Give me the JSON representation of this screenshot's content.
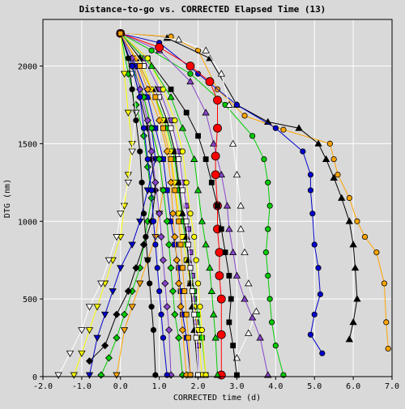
{
  "chart_data": {
    "type": "line",
    "title": "Distance-to-go vs. CORRECTED Elapsed Time (13)",
    "xlabel": "CORRECTED time (d)",
    "ylabel": "DTG (nm)",
    "xlim": [
      -2.0,
      7.0
    ],
    "ylim": [
      0,
      2300
    ],
    "xticks": [
      "-2.0",
      "-1.0",
      "0.0",
      "1.0",
      "2.0",
      "3.0",
      "4.0",
      "5.0",
      "6.0",
      "7.0"
    ],
    "yticks": [
      "0",
      "500",
      "1000",
      "1500",
      "2000"
    ],
    "xtick_values": [
      -2,
      -1,
      0,
      1,
      2,
      3,
      4,
      5,
      6,
      7
    ],
    "ytick_values": [
      0,
      500,
      1000,
      1500,
      2000
    ],
    "grid": true,
    "legend": "none",
    "colors": {
      "background": "#d9d9d9",
      "plot_area": "#d9d9d9",
      "grid": "#ffffff"
    },
    "series": [
      {
        "color": "#ffa500",
        "marker": "circle",
        "x": [
          0.0,
          1.3,
          2.0,
          2.5,
          3.2,
          4.2,
          5.4,
          5.5,
          5.6,
          5.9,
          6.1,
          6.3,
          6.6,
          6.8,
          6.85,
          6.9
        ],
        "y": [
          2210,
          2190,
          2100,
          1850,
          1680,
          1590,
          1500,
          1400,
          1300,
          1150,
          1000,
          900,
          800,
          600,
          350,
          180
        ]
      },
      {
        "color": "#000000",
        "marker": "triangle",
        "x": [
          0.0,
          1.2,
          2.3,
          3.0,
          3.8,
          4.6,
          5.1,
          5.3,
          5.5,
          5.7,
          5.9,
          6.0,
          6.05,
          6.1,
          6.0,
          5.9
        ],
        "y": [
          2210,
          2180,
          2050,
          1750,
          1640,
          1600,
          1500,
          1400,
          1280,
          1150,
          1000,
          850,
          700,
          500,
          350,
          240
        ]
      },
      {
        "color": "#0000cc",
        "marker": "circle",
        "x": [
          0.0,
          1.0,
          2.0,
          3.0,
          4.0,
          4.7,
          4.9,
          4.9,
          4.95,
          5.0,
          5.1,
          5.15,
          5.0,
          4.9,
          5.2
        ],
        "y": [
          2210,
          2150,
          1950,
          1750,
          1600,
          1450,
          1300,
          1200,
          1050,
          850,
          700,
          530,
          400,
          270,
          150
        ]
      },
      {
        "color": "#00cc00",
        "marker": "circle",
        "x": [
          0.0,
          0.8,
          1.8,
          2.7,
          3.4,
          3.7,
          3.8,
          3.85,
          3.8,
          3.75,
          3.8,
          3.85,
          3.9,
          4.0,
          4.2
        ],
        "y": [
          2210,
          2100,
          1950,
          1750,
          1550,
          1400,
          1250,
          1100,
          950,
          800,
          650,
          500,
          350,
          200,
          10
        ]
      },
      {
        "color": "#ffffff",
        "marker": "triangle",
        "x": [
          0.0,
          1.5,
          2.2,
          2.6,
          2.8,
          2.9,
          3.0,
          3.1,
          3.1,
          3.2,
          3.3,
          3.5,
          3.3,
          3.0
        ],
        "y": [
          2210,
          2170,
          2100,
          1950,
          1750,
          1500,
          1300,
          1100,
          950,
          800,
          600,
          420,
          280,
          120
        ]
      },
      {
        "color": "#8844cc",
        "marker": "triangle",
        "x": [
          0.0,
          1.0,
          1.8,
          2.2,
          2.4,
          2.6,
          2.75,
          2.8,
          2.9,
          3.0,
          3.2,
          3.4,
          3.6,
          3.8
        ],
        "y": [
          2210,
          2100,
          1900,
          1700,
          1500,
          1300,
          1100,
          950,
          800,
          650,
          500,
          380,
          250,
          10
        ]
      },
      {
        "color": "#ff0000",
        "marker": "bigcircle",
        "x": [
          0.0,
          1.0,
          1.8,
          2.3,
          2.5,
          2.5,
          2.45,
          2.45,
          2.5,
          2.5,
          2.55,
          2.55,
          2.6,
          2.6,
          2.6
        ],
        "y": [
          2210,
          2120,
          2000,
          1900,
          1780,
          1600,
          1420,
          1300,
          1100,
          950,
          800,
          650,
          500,
          270,
          10
        ]
      },
      {
        "color": "#000000",
        "marker": "square",
        "x": [
          0.0,
          0.7,
          1.3,
          1.7,
          2.0,
          2.2,
          2.35,
          2.5,
          2.6,
          2.7,
          2.8,
          2.85,
          2.8,
          2.9,
          3.0
        ],
        "y": [
          2210,
          2050,
          1850,
          1700,
          1550,
          1400,
          1250,
          1100,
          950,
          800,
          650,
          500,
          350,
          200,
          10
        ]
      },
      {
        "color": "#00cc00",
        "marker": "diamond",
        "x": [
          0.0,
          0.2,
          0.4,
          0.6,
          0.7,
          0.8,
          0.7,
          0.6,
          0.5,
          0.3,
          0.1,
          -0.1,
          -0.3,
          -0.5
        ],
        "y": [
          2210,
          1950,
          1750,
          1550,
          1350,
          1150,
          1000,
          850,
          700,
          550,
          400,
          250,
          120,
          10
        ]
      },
      {
        "color": "#ffff00",
        "marker": "triangle_down",
        "x": [
          0.0,
          0.1,
          0.2,
          0.3,
          0.2,
          0.1,
          0.0,
          -0.2,
          -0.4,
          -0.6,
          -0.8,
          -1.0,
          -1.2
        ],
        "y": [
          2210,
          1950,
          1700,
          1500,
          1300,
          1100,
          900,
          750,
          600,
          450,
          300,
          150,
          10
        ]
      },
      {
        "color": "#ffffff",
        "marker": "triangle_down",
        "x": [
          0.0,
          0.3,
          0.4,
          0.3,
          0.2,
          0.0,
          -0.1,
          -0.3,
          -0.5,
          -0.8,
          -1.0,
          -1.3,
          -1.6
        ],
        "y": [
          2210,
          1950,
          1700,
          1450,
          1250,
          1050,
          900,
          750,
          600,
          450,
          300,
          150,
          10
        ]
      },
      {
        "color": "#0000cc",
        "marker": "triangle_down",
        "x": [
          0.0,
          0.3,
          0.6,
          0.8,
          0.9,
          0.7,
          0.5,
          0.3,
          0.0,
          -0.2,
          -0.4,
          -0.6,
          -0.8
        ],
        "y": [
          2210,
          2000,
          1800,
          1600,
          1400,
          1200,
          1000,
          850,
          700,
          550,
          400,
          250,
          10
        ]
      },
      {
        "color": "#000000",
        "marker": "diamond",
        "x": [
          0.0,
          0.3,
          0.5,
          0.7,
          0.8,
          0.9,
          0.8,
          0.6,
          0.4,
          0.2,
          -0.1,
          -0.4,
          -0.8
        ],
        "y": [
          2210,
          2000,
          1800,
          1600,
          1400,
          1200,
          1000,
          850,
          700,
          550,
          400,
          200,
          100
        ]
      },
      {
        "color": "#ffa500",
        "marker": "triangle_down",
        "x": [
          0.0,
          0.4,
          0.6,
          0.8,
          1.0,
          1.1,
          1.0,
          0.9,
          0.7,
          0.5,
          0.3,
          0.1,
          -0.1
        ],
        "y": [
          2210,
          2000,
          1800,
          1600,
          1400,
          1200,
          1050,
          900,
          750,
          600,
          450,
          300,
          10
        ]
      },
      {
        "color": "#8844cc",
        "marker": "square",
        "x": [
          0.0,
          0.6,
          1.0,
          1.3,
          1.5,
          1.6,
          1.7,
          1.75,
          1.8,
          1.85,
          1.9,
          1.95,
          2.0,
          2.0
        ],
        "y": [
          2210,
          2050,
          1850,
          1650,
          1450,
          1250,
          1100,
          950,
          800,
          650,
          500,
          350,
          200,
          10
        ]
      },
      {
        "color": "#00cc00",
        "marker": "square",
        "x": [
          0.0,
          0.5,
          0.9,
          1.2,
          1.4,
          1.5,
          1.6,
          1.7,
          1.8,
          1.9,
          2.0,
          2.1,
          2.2
        ],
        "y": [
          2210,
          2000,
          1800,
          1600,
          1400,
          1200,
          1000,
          850,
          700,
          550,
          400,
          250,
          10
        ]
      },
      {
        "color": "#ffff00",
        "marker": "square",
        "x": [
          0.0,
          0.5,
          0.8,
          1.1,
          1.3,
          1.4,
          1.5,
          1.6,
          1.7,
          1.8,
          1.9,
          2.0,
          2.1
        ],
        "y": [
          2210,
          2050,
          1850,
          1650,
          1450,
          1250,
          1050,
          900,
          750,
          600,
          450,
          300,
          10
        ]
      },
      {
        "color": "#0000cc",
        "marker": "square",
        "x": [
          0.0,
          0.4,
          0.7,
          0.9,
          1.1,
          1.2,
          1.3,
          1.4,
          1.5,
          1.55,
          1.6,
          1.7,
          1.8
        ],
        "y": [
          2210,
          2000,
          1800,
          1600,
          1400,
          1200,
          1000,
          850,
          700,
          550,
          400,
          250,
          10
        ]
      },
      {
        "color": "#000000",
        "marker": "triangle",
        "x": [
          0.0,
          0.5,
          0.9,
          1.2,
          1.4,
          1.5,
          1.6,
          1.7,
          1.75,
          1.8,
          1.85,
          1.9,
          2.0
        ],
        "y": [
          2210,
          2050,
          1850,
          1650,
          1450,
          1250,
          1050,
          900,
          750,
          600,
          450,
          300,
          10
        ]
      },
      {
        "color": "#00cc00",
        "marker": "diamond",
        "x": [
          0.0,
          0.3,
          0.6,
          0.8,
          1.0,
          1.1,
          1.2,
          1.25,
          1.3,
          1.35,
          1.4,
          1.5,
          1.6
        ],
        "y": [
          2210,
          2000,
          1800,
          1600,
          1400,
          1200,
          1000,
          850,
          700,
          550,
          400,
          250,
          10
        ]
      },
      {
        "color": "#ffa500",
        "marker": "diamond",
        "x": [
          0.0,
          0.4,
          0.7,
          1.0,
          1.2,
          1.3,
          1.35,
          1.4,
          1.45,
          1.5,
          1.55,
          1.6,
          1.7
        ],
        "y": [
          2210,
          2050,
          1850,
          1650,
          1450,
          1250,
          1050,
          900,
          750,
          600,
          450,
          300,
          10
        ]
      },
      {
        "color": "#ffffff",
        "marker": "square",
        "x": [
          0.0,
          0.6,
          1.0,
          1.3,
          1.5,
          1.6,
          1.7,
          1.75,
          1.8,
          1.85,
          1.9,
          1.95,
          2.0
        ],
        "y": [
          2210,
          2000,
          1800,
          1600,
          1400,
          1200,
          1000,
          850,
          700,
          550,
          400,
          250,
          10
        ]
      },
      {
        "color": "#8844cc",
        "marker": "diamond",
        "x": [
          0.0,
          0.3,
          0.5,
          0.7,
          0.8,
          0.9,
          1.0,
          1.05,
          1.1,
          1.15,
          1.2,
          1.25,
          1.3
        ],
        "y": [
          2210,
          2050,
          1850,
          1650,
          1450,
          1250,
          1050,
          900,
          750,
          600,
          450,
          300,
          10
        ]
      },
      {
        "color": "#0000cc",
        "marker": "circle",
        "x": [
          0.0,
          0.3,
          0.5,
          0.6,
          0.7,
          0.8,
          0.85,
          0.9,
          0.95,
          1.0,
          1.05,
          1.1,
          1.2
        ],
        "y": [
          2210,
          2000,
          1800,
          1600,
          1400,
          1200,
          1000,
          850,
          700,
          550,
          400,
          250,
          10
        ]
      },
      {
        "color": "#ffff00",
        "marker": "circle",
        "x": [
          0.0,
          0.7,
          1.1,
          1.4,
          1.6,
          1.7,
          1.8,
          1.9,
          1.95,
          2.0,
          2.05,
          2.1,
          2.2
        ],
        "y": [
          2210,
          2050,
          1850,
          1650,
          1450,
          1250,
          1050,
          900,
          750,
          600,
          450,
          300,
          10
        ]
      },
      {
        "color": "#00cc00",
        "marker": "triangle",
        "x": [
          0.0,
          0.8,
          1.3,
          1.6,
          1.9,
          2.0,
          2.1,
          2.2,
          2.3,
          2.35,
          2.4,
          2.45,
          2.5
        ],
        "y": [
          2210,
          2000,
          1800,
          1600,
          1400,
          1200,
          1000,
          850,
          700,
          550,
          400,
          250,
          10
        ]
      },
      {
        "color": "#000000",
        "marker": "circle",
        "x": [
          0.0,
          0.2,
          0.3,
          0.4,
          0.5,
          0.55,
          0.6,
          0.65,
          0.7,
          0.75,
          0.8,
          0.85,
          0.9
        ],
        "y": [
          2210,
          2050,
          1850,
          1650,
          1450,
          1250,
          1050,
          900,
          750,
          600,
          450,
          300,
          10
        ]
      },
      {
        "color": "#ffa500",
        "marker": "square",
        "x": [
          0.0,
          0.5,
          0.9,
          1.1,
          1.3,
          1.4,
          1.5,
          1.55,
          1.6,
          1.65,
          1.7,
          1.75,
          1.8
        ],
        "y": [
          2210,
          2000,
          1800,
          1600,
          1400,
          1200,
          1000,
          850,
          700,
          550,
          400,
          250,
          10
        ]
      }
    ]
  }
}
